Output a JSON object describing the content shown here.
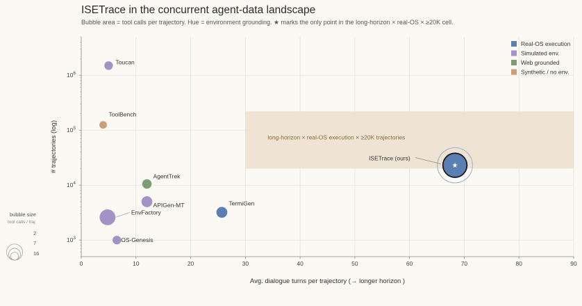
{
  "header": {
    "title": "ISETrace in the concurrent agent-data landscape",
    "subtitle": "Bubble area = tool calls per trajectory. Hue = environment grounding. ★ marks the only point in the long-horizon × real-OS × ≥20K cell."
  },
  "chart_data": {
    "type": "scatter",
    "title": "ISETrace in the concurrent agent-data landscape",
    "xlabel": "Avg. dialogue turns per trajectory    (→ longer horizon )",
    "ylabel": "# trajectories   (log)",
    "xlim": [
      0,
      90
    ],
    "ylim": [
      500,
      5000000
    ],
    "yscale": "log",
    "grid": true,
    "legend_position": "top-right",
    "x_ticks": [
      "0",
      "10",
      "20",
      "30",
      "40",
      "50",
      "60",
      "70",
      "80",
      "90"
    ],
    "y_ticks": [
      {
        "value": 1000,
        "base": "10",
        "exp": "3"
      },
      {
        "value": 10000,
        "base": "10",
        "exp": "4"
      },
      {
        "value": 100000,
        "base": "10",
        "exp": "5"
      },
      {
        "value": 1000000,
        "base": "10",
        "exp": "6"
      }
    ],
    "categories": [
      {
        "name": "Real-OS execution",
        "color": "#5b7fb3"
      },
      {
        "name": "Simulated env.",
        "color": "#a393c4"
      },
      {
        "name": "Web grounded",
        "color": "#7d9e75"
      },
      {
        "name": "Synthetic / no env.",
        "color": "#c9a07a"
      }
    ],
    "points": [
      {
        "label": "Toucan",
        "x": 5,
        "y": 1500000,
        "size": 3,
        "category": "Simulated env."
      },
      {
        "label": "ToolBench",
        "x": 4,
        "y": 125000,
        "size": 2,
        "category": "Synthetic / no env."
      },
      {
        "label": "AgentTrek",
        "x": 12,
        "y": 10500,
        "size": 4,
        "category": "Web grounded"
      },
      {
        "label": "APIGen-MT",
        "x": 12,
        "y": 5000,
        "size": 6,
        "category": "Simulated env."
      },
      {
        "label": "EnvFactory",
        "x": 4.8,
        "y": 2600,
        "size": 16,
        "category": "Simulated env."
      },
      {
        "label": "OS-Genesis",
        "x": 6.5,
        "y": 1000,
        "size": 3,
        "category": "Simulated env."
      },
      {
        "label": "TermiGen",
        "x": 25.7,
        "y": 3200,
        "size": 6,
        "category": "Real-OS execution"
      },
      {
        "label": "ISETrace (ours)",
        "x": 68.3,
        "y": 23000,
        "size": 42,
        "category": "Real-OS execution",
        "highlight": true
      }
    ],
    "zone": {
      "label": "long-horizon  ×  real-OS execution  ×  ≥20K trajectories",
      "x": [
        30,
        90
      ],
      "y": [
        20000,
        220000
      ]
    },
    "size_legend": {
      "title": "bubble size",
      "subtitle": "tool calls / traj",
      "values": [
        "2",
        "7",
        "16"
      ]
    }
  }
}
